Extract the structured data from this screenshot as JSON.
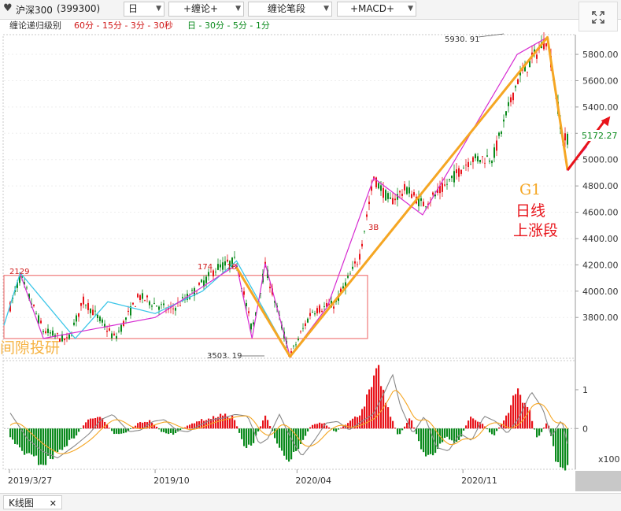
{
  "toolbar": {
    "heart_icon": "heart-icon",
    "symbol": "沪深300",
    "code": "(399300)",
    "period": "日",
    "indicator1": "+缠论+",
    "indicator2": "缠论笔段",
    "indicator3": "+MACD+",
    "dropdown_arrow": "▼"
  },
  "subbar": {
    "label": "缠论递归级别",
    "levels_red": "60分 - 15分 - 3分 - 30秒",
    "levels_green": "日 - 30分 - 5分 - 1分"
  },
  "footer": {
    "tab_label": "K线图",
    "close_glyph": "✕"
  },
  "colors": {
    "up": "#e8141b",
    "down": "#0a8a1c",
    "orange": "#f5a623",
    "cyan": "#3cc6e8",
    "magenta": "#d62ad1",
    "ma_gray": "#888888"
  },
  "chart_data": {
    "type": "candlestick",
    "y_axis": {
      "ticks": [
        3800,
        4000,
        4200,
        4400,
        4600,
        4800,
        5000,
        5200,
        5400,
        5600,
        5800
      ],
      "range": [
        3490,
        5950
      ]
    },
    "x_axis": {
      "tick_labels": [
        "2019/3/27",
        "2019/10",
        "2020/04",
        "2020/11"
      ],
      "range": [
        "2019/3/20",
        "2021/3/25"
      ]
    },
    "last_price": "5172.27",
    "annotations": {
      "high_2129": "2129",
      "high_174": "174",
      "high_18": "18",
      "low_3503": "3503. 19",
      "high_5930": "5930. 91",
      "label_3b": "3B",
      "g1": "G1",
      "daily_line": "日线",
      "up_segment": "上涨段",
      "watermark": "间隙投研"
    },
    "price_path": [
      [
        "2019/3/20",
        3740
      ],
      [
        "2019/4/10",
        4110
      ],
      [
        "2019/5/10",
        3700
      ],
      [
        "2019/6/10",
        3620
      ],
      [
        "2019/7/1",
        3930
      ],
      [
        "2019/8/10",
        3640
      ],
      [
        "2019/9/10",
        3960
      ],
      [
        "2019/10/20",
        3850
      ],
      [
        "2019/11/20",
        3990
      ],
      [
        "2019/12/20",
        4180
      ],
      [
        "2020/1/14",
        4230
      ],
      [
        "2020/2/3",
        3700
      ],
      [
        "2020/2/20",
        4190
      ],
      [
        "2020/3/23",
        3503
      ],
      [
        "2020/4/20",
        3850
      ],
      [
        "2020/5/20",
        3900
      ],
      [
        "2020/6/20",
        4250
      ],
      [
        "2020/7/9",
        4860
      ],
      [
        "2020/7/30",
        4680
      ],
      [
        "2020/8/20",
        4780
      ],
      [
        "2020/9/10",
        4660
      ],
      [
        "2020/10/1",
        4750
      ],
      [
        "2020/11/10",
        5000
      ],
      [
        "2020/12/10",
        5020
      ],
      [
        "2021/1/10",
        5600
      ],
      [
        "2021/2/18",
        5930
      ],
      [
        "2021/3/10",
        5150
      ],
      [
        "2021/3/25",
        5172
      ]
    ],
    "bi_segments_orange": [
      [
        "2020/1/14",
        4180
      ],
      [
        "2020/3/23",
        3503
      ],
      [
        "2021/2/18",
        5930
      ],
      [
        "2021/3/16",
        4920
      ]
    ],
    "bi_cyan": [
      [
        "2019/3/20",
        3740
      ],
      [
        "2019/4/10",
        4140
      ],
      [
        "2019/6/20",
        3640
      ],
      [
        "2019/8/1",
        3920
      ],
      [
        "2019/10/1",
        3830
      ],
      [
        "2019/12/1",
        4000
      ],
      [
        "2020/1/14",
        4230
      ],
      [
        "2020/3/23",
        3503
      ]
    ],
    "bi_magenta": [
      [
        "2019/4/10",
        4130
      ],
      [
        "2019/5/10",
        3640
      ],
      [
        "2019/10/1",
        3800
      ],
      [
        "2020/1/14",
        4200
      ],
      [
        "2020/2/3",
        3640
      ],
      [
        "2020/2/20",
        4210
      ],
      [
        "2020/3/23",
        3503
      ],
      [
        "2020/5/10",
        3880
      ],
      [
        "2020/7/9",
        4860
      ],
      [
        "2020/9/10",
        4580
      ],
      [
        "2021/1/10",
        5800
      ],
      [
        "2021/2/18",
        5930
      ],
      [
        "2021/3/16",
        4920
      ],
      [
        "2021/4/10",
        5100
      ]
    ],
    "zhongshu_box": {
      "x": [
        "2019/3/20",
        "2020/7/1"
      ],
      "y": [
        3640,
        4120
      ]
    },
    "arrow": {
      "from": [
        "2021/3/16",
        4920
      ],
      "to": [
        "2021/5/10",
        5330
      ]
    },
    "macd": {
      "ticks": [
        "1",
        "0"
      ],
      "multiplier": "x100",
      "range": [
        -1.05,
        1.75
      ],
      "histogram": [
        {
          "x": "2019/3/20",
          "v": 0.05
        },
        {
          "x": "2019/4/1",
          "v": -0.35
        },
        {
          "x": "2019/4/20",
          "v": -0.7
        },
        {
          "x": "2019/5/10",
          "v": -0.9
        },
        {
          "x": "2019/6/1",
          "v": -0.55
        },
        {
          "x": "2019/6/20",
          "v": -0.2
        },
        {
          "x": "2019/7/5",
          "v": 0.2
        },
        {
          "x": "2019/7/20",
          "v": 0.35
        },
        {
          "x": "2019/8/10",
          "v": -0.15
        },
        {
          "x": "2019/8/25",
          "v": -0.1
        },
        {
          "x": "2019/9/10",
          "v": 0.15
        },
        {
          "x": "2019/9/25",
          "v": 0.2
        },
        {
          "x": "2019/10/10",
          "v": -0.1
        },
        {
          "x": "2019/10/25",
          "v": -0.15
        },
        {
          "x": "2019/11/10",
          "v": 0.05
        },
        {
          "x": "2019/11/25",
          "v": 0.2
        },
        {
          "x": "2019/12/10",
          "v": 0.25
        },
        {
          "x": "2019/12/25",
          "v": 0.35
        },
        {
          "x": "2020/1/10",
          "v": 0.3
        },
        {
          "x": "2020/1/25",
          "v": -0.5
        },
        {
          "x": "2020/2/5",
          "v": -0.35
        },
        {
          "x": "2020/2/20",
          "v": 0.35
        },
        {
          "x": "2020/3/5",
          "v": -0.3
        },
        {
          "x": "2020/3/20",
          "v": -0.85
        },
        {
          "x": "2020/4/5",
          "v": -0.4
        },
        {
          "x": "2020/4/20",
          "v": 0.1
        },
        {
          "x": "2020/5/5",
          "v": 0.15
        },
        {
          "x": "2020/5/20",
          "v": -0.1
        },
        {
          "x": "2020/6/5",
          "v": 0.15
        },
        {
          "x": "2020/6/20",
          "v": 0.35
        },
        {
          "x": "2020/7/5",
          "v": 1.0
        },
        {
          "x": "2020/7/15",
          "v": 1.5
        },
        {
          "x": "2020/7/25",
          "v": 0.6
        },
        {
          "x": "2020/8/10",
          "v": -0.2
        },
        {
          "x": "2020/8/25",
          "v": 0.3
        },
        {
          "x": "2020/9/10",
          "v": -0.6
        },
        {
          "x": "2020/9/25",
          "v": -0.7
        },
        {
          "x": "2020/10/10",
          "v": -0.2
        },
        {
          "x": "2020/10/25",
          "v": -0.4
        },
        {
          "x": "2020/11/10",
          "v": 0.3
        },
        {
          "x": "2020/11/25",
          "v": 0.15
        },
        {
          "x": "2020/12/10",
          "v": -0.2
        },
        {
          "x": "2020/12/25",
          "v": 0.25
        },
        {
          "x": "2021/1/10",
          "v": 1.0
        },
        {
          "x": "2021/1/25",
          "v": 0.5
        },
        {
          "x": "2021/2/5",
          "v": -0.3
        },
        {
          "x": "2021/2/18",
          "v": 0.2
        },
        {
          "x": "2021/3/1",
          "v": -0.8
        },
        {
          "x": "2021/3/15",
          "v": -1.0
        },
        {
          "x": "2021/3/25",
          "v": -0.6
        },
        {
          "x": "2021/4/10",
          "v": -0.4
        },
        {
          "x": "2021/4/25",
          "v": 0.3
        },
        {
          "x": "2021/5/10",
          "v": -0.2
        },
        {
          "x": "2021/5/20",
          "v": 0.2
        }
      ]
    }
  }
}
